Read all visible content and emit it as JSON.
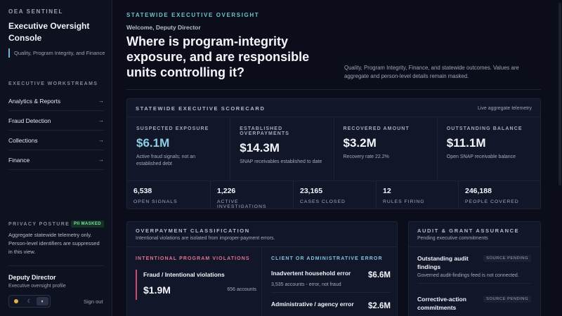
{
  "sidebar": {
    "kicker": "OEA SENTINEL",
    "title": "Executive Oversight Console",
    "subtitle": "Quality, Program Integrity, and Finance",
    "section_label": "EXECUTIVE WORKSTREAMS",
    "nav": [
      {
        "label": "Analytics & Reports",
        "icon": "arrow-right-icon",
        "arrow": "→"
      },
      {
        "label": "Fraud Detection",
        "icon": "arrow-right-icon",
        "arrow": "→"
      },
      {
        "label": "Collections",
        "icon": "arrow-right-icon",
        "arrow": "→"
      },
      {
        "label": "Finance",
        "icon": "arrow-right-icon",
        "arrow": "→"
      }
    ],
    "privacy": {
      "label": "PRIVACY POSTURE",
      "badge": "PII MASKED",
      "text": "Aggregate statewide telemetry only. Person-level identifiers are suppressed in this view."
    },
    "user": {
      "name": "Deputy Director",
      "role": "Executive oversight profile"
    },
    "theme": {
      "moon_glyph": "☾",
      "contrast_glyph": "◐"
    },
    "signout": "Sign out"
  },
  "header": {
    "kicker": "STATEWIDE EXECUTIVE OVERSIGHT",
    "welcome": "Welcome, Deputy Director",
    "headline": "Where is program-integrity exposure, and are responsible units controlling it?",
    "description": "Quality, Program Integrity, Finance, and statewide outcomes. Values are aggregate and person-level details remain masked."
  },
  "scorecard": {
    "title": "STATEWIDE EXECUTIVE SCORECARD",
    "live": "Live aggregate telemetry",
    "kpis": [
      {
        "label": "SUSPECTED EXPOSURE",
        "value": "$6.1M",
        "note": "Active fraud signals; not an established debt"
      },
      {
        "label": "ESTABLISHED OVERPAYMENTS",
        "value": "$14.3M",
        "note": "SNAP receivables established to date"
      },
      {
        "label": "RECOVERED AMOUNT",
        "value": "$3.2M",
        "note": "Recovery rate 22.2%"
      },
      {
        "label": "OUTSTANDING BALANCE",
        "value": "$11.1M",
        "note": "Open SNAP receivable balance"
      }
    ],
    "stats": [
      {
        "value": "6,538",
        "label": "OPEN SIGNALS"
      },
      {
        "value": "1,226",
        "label": "ACTIVE INVESTIGATIONS"
      },
      {
        "value": "23,165",
        "label": "CASES CLOSED"
      },
      {
        "value": "12",
        "label": "RULES FIRING"
      },
      {
        "value": "246,188",
        "label": "PEOPLE COVERED"
      }
    ],
    "accent_color": "#8ccfe6"
  },
  "overpayment": {
    "title": "OVERPAYMENT CLASSIFICATION",
    "subtitle": "Intentional violations are isolated from improper-payment errors.",
    "intentional": {
      "heading": "INTENTIONAL PROGRAM VIOLATIONS",
      "color": "#e2738f",
      "item": {
        "title": "Fraud / Intentional violations",
        "value": "$1.9M",
        "count": "656 accounts"
      }
    },
    "error": {
      "heading": "CLIENT OR ADMINISTRATIVE ERROR",
      "color": "#7fc7e0",
      "items": [
        {
          "title": "Inadvertent household error",
          "value": "$6.6M",
          "note": "3,535 accounts - error, not fraud"
        },
        {
          "title": "Administrative / agency error",
          "value": "$2.6M"
        }
      ]
    }
  },
  "audit": {
    "title": "AUDIT & GRANT ASSURANCE",
    "subtitle": "Pending executive commitments",
    "items": [
      {
        "title": "Outstanding audit findings",
        "badge": "SOURCE PENDING",
        "note": "Governed audit-findings feed is not connected."
      },
      {
        "title": "Corrective-action commitments",
        "badge": "SOURCE PENDING"
      }
    ]
  }
}
